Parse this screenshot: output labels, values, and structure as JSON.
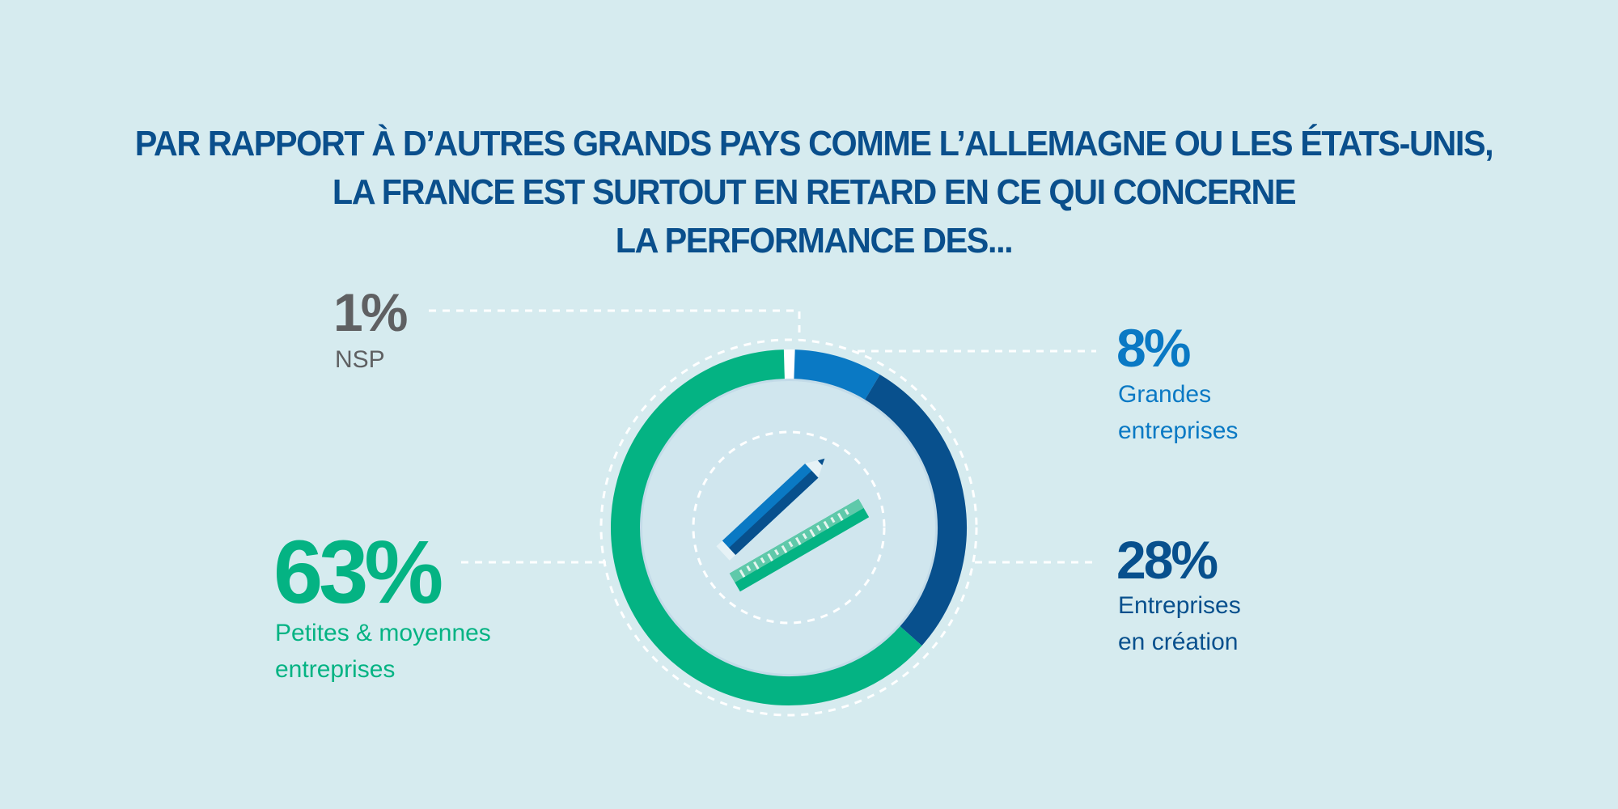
{
  "title": {
    "line1": "PAR RAPPORT À D’AUTRES GRANDS PAYS COMME L’ALLEMAGNE OU LES ÉTATS-UNIS,",
    "line2": "LA FRANCE EST SURTOUT EN RETARD EN CE QUI CONCERNE",
    "line3": "LA PERFORMANCE DES..."
  },
  "chart_data": {
    "type": "pie",
    "title": "PAR RAPPORT À D’AUTRES GRANDS PAYS COMME L’ALLEMAGNE OU LES ÉTATS-UNIS, LA FRANCE EST SURTOUT EN RETARD EN CE QUI CONCERNE LA PERFORMANCE DES...",
    "donut": true,
    "slices": [
      {
        "key": "nsp",
        "pct_label": "1%",
        "value": 1,
        "label_line1": "NSP",
        "label_line2": "",
        "color": "#ffffff",
        "text_color": "#5f6062"
      },
      {
        "key": "grandes",
        "pct_label": "8%",
        "value": 8,
        "label_line1": "Grandes",
        "label_line2": "entreprises",
        "color": "#0a79c4",
        "text_color": "#0a79c4"
      },
      {
        "key": "creation",
        "pct_label": "28%",
        "value": 28,
        "label_line1": "Entreprises",
        "label_line2": "en création",
        "color": "#08508d",
        "text_color": "#08508d"
      },
      {
        "key": "pme",
        "pct_label": "63%",
        "value": 63,
        "label_line1": "Petites & moyennes",
        "label_line2": "entreprises",
        "color": "#04b383",
        "text_color": "#04b383"
      }
    ]
  },
  "icons": {
    "center": "pencil-and-ruler-icon"
  },
  "colors": {
    "background": "#d6ebef",
    "title": "#0a4f8c",
    "inner_circle": "#d0e6ee",
    "inner_ring": "#c3dbe8",
    "dashed": "#ffffff"
  }
}
